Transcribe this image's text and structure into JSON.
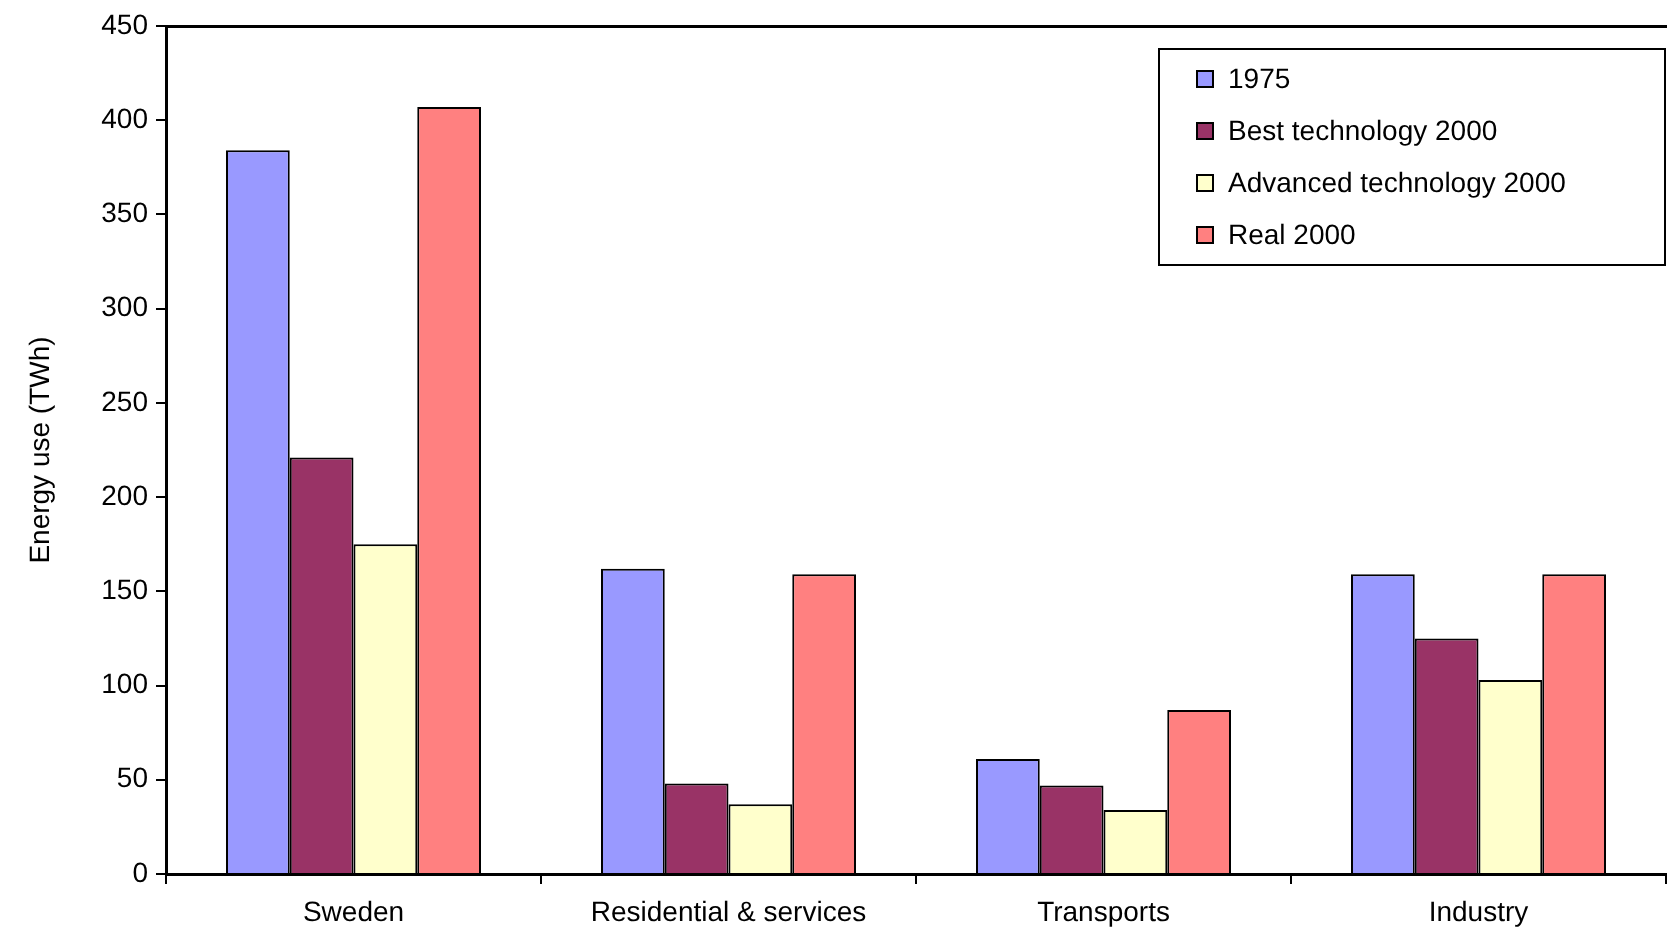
{
  "chart_data": {
    "type": "bar",
    "ylabel": "Energy use (TWh)",
    "categories": [
      "Sweden",
      "Residential & services",
      "Transports",
      "Industry"
    ],
    "series": [
      {
        "name": "1975",
        "color": "#9999ff",
        "values": [
          384,
          162,
          61,
          159
        ]
      },
      {
        "name": "Best technology 2000",
        "color": "#993366",
        "values": [
          221,
          48,
          47,
          125
        ]
      },
      {
        "name": "Advanced technology 2000",
        "color": "#ffffcc",
        "values": [
          175,
          37,
          34,
          103
        ]
      },
      {
        "name": "Real 2000",
        "color": "#ff8080",
        "values": [
          407,
          159,
          87,
          159
        ]
      }
    ],
    "ylim": [
      0,
      450
    ],
    "yticks": [
      0,
      50,
      100,
      150,
      200,
      250,
      300,
      350,
      400,
      450
    ],
    "legend": "top right"
  }
}
